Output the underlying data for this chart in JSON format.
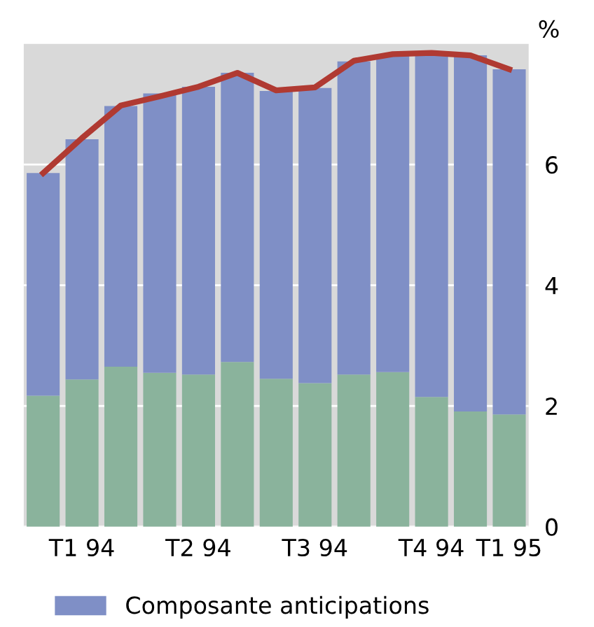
{
  "chart_data": {
    "type": "bar",
    "stacked": true,
    "ylabel": "%",
    "categories": [
      null,
      "T1 94",
      null,
      null,
      "T2 94",
      null,
      null,
      "T3 94",
      null,
      null,
      "T4 94",
      null,
      "T1 95"
    ],
    "series": [
      {
        "color": "#8ab39c",
        "values": [
          2.17,
          2.44,
          2.65,
          2.55,
          2.52,
          2.73,
          2.45,
          2.38,
          2.52,
          2.56,
          2.15,
          1.91,
          1.86
        ]
      },
      {
        "name": "Composante anticipations",
        "color": "#7f8fc6",
        "values": [
          3.69,
          3.98,
          4.32,
          4.63,
          4.77,
          4.79,
          4.77,
          4.89,
          5.19,
          5.26,
          5.67,
          5.9,
          5.72
        ]
      },
      {
        "type": "line",
        "color": "#b03a32",
        "values": [
          5.86,
          6.44,
          6.98,
          7.13,
          7.29,
          7.52,
          7.23,
          7.28,
          7.72,
          7.83,
          7.85,
          7.81,
          7.58
        ]
      }
    ],
    "ylim": [
      0,
      8
    ],
    "yticks": [
      0,
      2,
      4,
      6
    ],
    "grid": "y",
    "legend": "bottom"
  }
}
